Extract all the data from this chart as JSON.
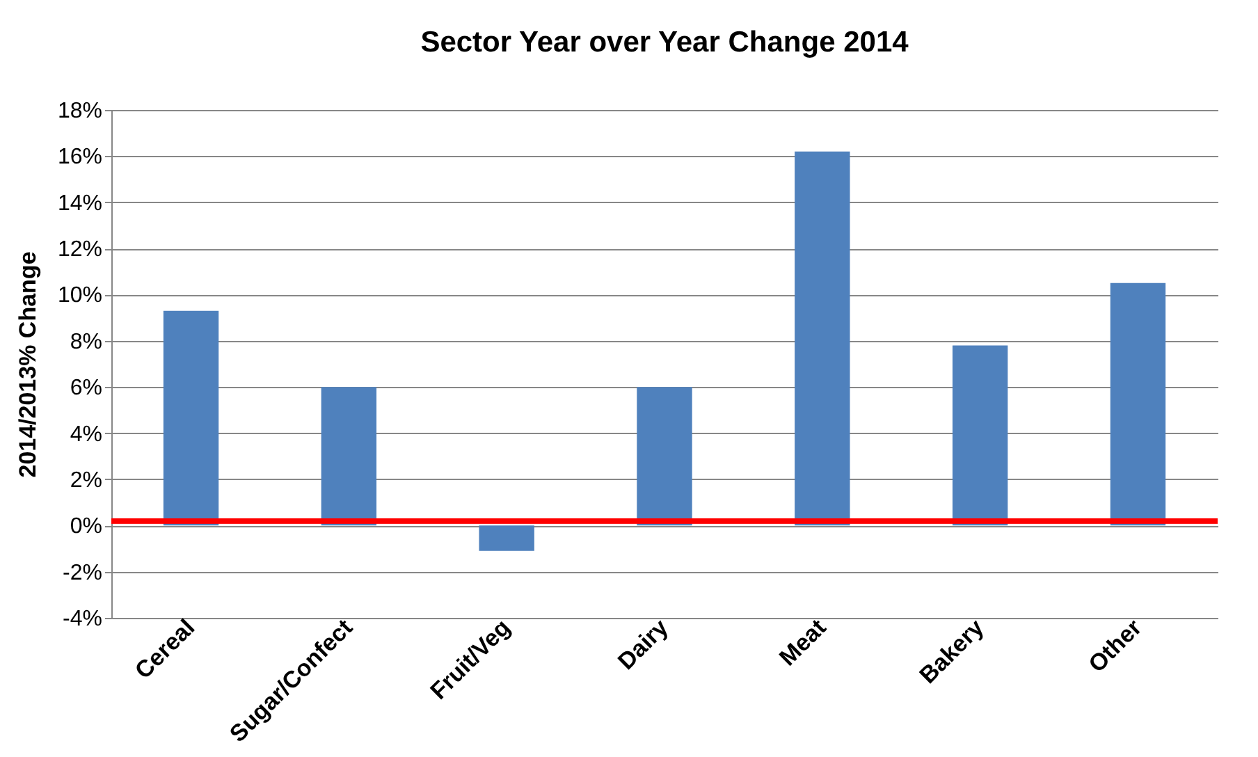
{
  "chart_data": {
    "type": "bar",
    "title": "Sector Year over Year Change 2014",
    "ylabel": "2014/2013% Change",
    "categories": [
      "Cereal",
      "Sugar/Confect",
      "Fruit/Veg",
      "Dairy",
      "Meat",
      "Bakery",
      "Other"
    ],
    "values": [
      9.3,
      6.0,
      -1.1,
      6.0,
      16.2,
      7.8,
      10.5
    ],
    "color": "#4f81bd",
    "ylim": [
      -4,
      18
    ],
    "yticks": [
      {
        "value": -4,
        "label": "-4%"
      },
      {
        "value": -2,
        "label": "-2%"
      },
      {
        "value": 0,
        "label": "0%"
      },
      {
        "value": 2,
        "label": "2%"
      },
      {
        "value": 4,
        "label": "4%"
      },
      {
        "value": 6,
        "label": "6%"
      },
      {
        "value": 8,
        "label": "8%"
      },
      {
        "value": 10,
        "label": "10%"
      },
      {
        "value": 12,
        "label": "12%"
      },
      {
        "value": 14,
        "label": "14%"
      },
      {
        "value": 16,
        "label": "16%"
      },
      {
        "value": 18,
        "label": "18%"
      }
    ],
    "grid": "y",
    "ref_lines": [
      {
        "axis": "y",
        "value": 0.2,
        "color": "#ff0000"
      }
    ]
  }
}
